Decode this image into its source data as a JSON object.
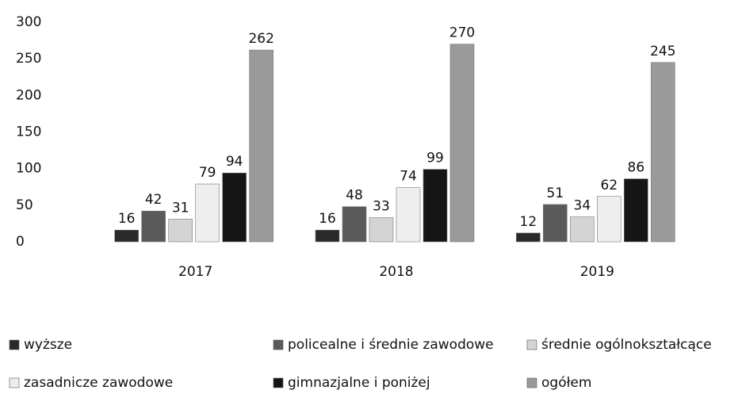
{
  "chart_data": {
    "type": "bar",
    "categories": [
      "2017",
      "2018",
      "2019"
    ],
    "series": [
      {
        "name": "wyższe",
        "color": "#2a2a2a",
        "values": [
          16,
          16,
          12
        ]
      },
      {
        "name": "policealne i średnie zawodowe",
        "color": "#5a5a5a",
        "values": [
          42,
          48,
          51
        ]
      },
      {
        "name": "średnie ogólnokształcące",
        "color": "#d4d4d4",
        "values": [
          31,
          33,
          34
        ]
      },
      {
        "name": "zasadnicze zawodowe",
        "color": "#eeeeee",
        "values": [
          79,
          74,
          62
        ]
      },
      {
        "name": "gimnazjalne i poniżej",
        "color": "#151515",
        "values": [
          94,
          99,
          86
        ]
      },
      {
        "name": "ogółem",
        "color": "#9a9a9a",
        "values": [
          262,
          270,
          245
        ]
      }
    ],
    "ylim": [
      0,
      300
    ],
    "yticks": [
      0,
      50,
      100,
      150,
      200,
      250,
      300
    ],
    "grid": false,
    "legend": "bottom"
  }
}
